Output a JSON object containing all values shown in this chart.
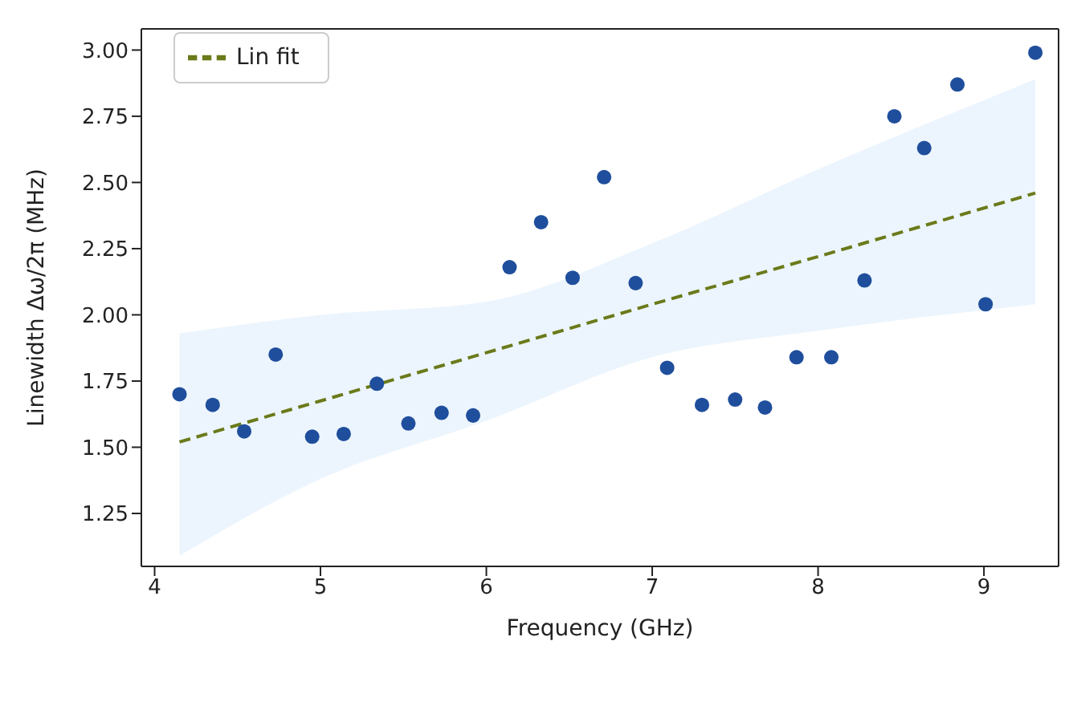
{
  "chart_data": {
    "type": "scatter",
    "xlabel": "Frequency (GHz)",
    "ylabel": "Linewidth Δω/2π (MHz)",
    "xlim": [
      3.92,
      9.45
    ],
    "xticks": [
      4,
      5,
      6,
      7,
      8,
      9
    ],
    "ylim": [
      1.05,
      3.08
    ],
    "yticks": [
      {
        "value": 1.25,
        "label": "1.25"
      },
      {
        "value": 1.5,
        "label": "1.50"
      },
      {
        "value": 1.75,
        "label": "1.75"
      },
      {
        "value": 2.0,
        "label": "2.00"
      },
      {
        "value": 2.25,
        "label": "2.25"
      },
      {
        "value": 2.5,
        "label": "2.50"
      },
      {
        "value": 2.75,
        "label": "2.75"
      },
      {
        "value": 3.0,
        "label": "3.00"
      }
    ],
    "grid": false,
    "legend": "top left",
    "series": [
      {
        "color": "#1f4e9c",
        "marker": "circle",
        "x": [
          4.15,
          4.35,
          4.54,
          4.73,
          4.95,
          5.14,
          5.34,
          5.53,
          5.73,
          5.92,
          6.14,
          6.33,
          6.52,
          6.71,
          6.9,
          7.09,
          7.3,
          7.5,
          7.68,
          7.87,
          8.08,
          8.28,
          8.46,
          8.64,
          8.84,
          9.01,
          9.31
        ],
        "values": [
          1.7,
          1.66,
          1.56,
          1.85,
          1.54,
          1.55,
          1.74,
          1.59,
          1.63,
          1.62,
          2.18,
          2.35,
          2.14,
          2.52,
          2.12,
          1.8,
          1.66,
          1.68,
          1.65,
          1.84,
          1.84,
          2.13,
          2.75,
          2.63,
          2.87,
          2.04,
          2.99
        ]
      },
      {
        "type": "line",
        "name": "Lin fit",
        "color": "#6b7a1a",
        "line_style": "dashed",
        "marker": "none",
        "x": [
          4.15,
          5,
          6,
          7,
          8,
          9.31
        ],
        "values": [
          1.52,
          1.675,
          1.857,
          2.04,
          2.22,
          2.46
        ],
        "lower": [
          1.09,
          1.38,
          1.6,
          1.84,
          1.94,
          2.04
        ],
        "upper": [
          1.93,
          2.0,
          2.05,
          2.27,
          2.55,
          2.89
        ]
      }
    ]
  }
}
